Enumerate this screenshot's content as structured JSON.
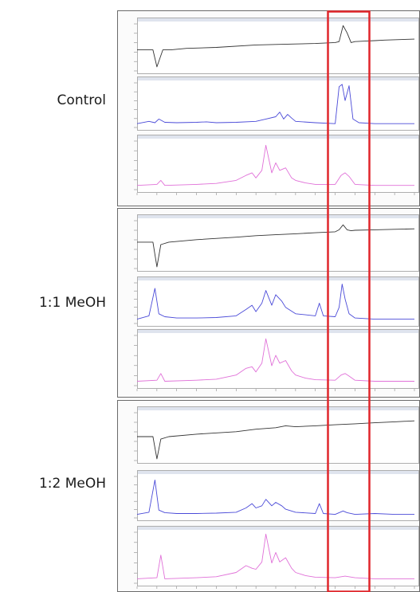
{
  "groups": [
    {
      "label": "Control"
    },
    {
      "label": "1:1 MeOH"
    },
    {
      "label": "1:2 MeOH"
    }
  ],
  "colors": {
    "trace_black": "#333333",
    "trace_blue": "#4a4ad8",
    "trace_magenta": "#e070d8",
    "highlight": "#e0262b"
  },
  "chart_data": [
    {
      "type": "line",
      "group": "Control",
      "panel": 1,
      "color": "black",
      "x": [
        0,
        0.8,
        1.0,
        1.3,
        1.7,
        2.5,
        4,
        6,
        7,
        8,
        9,
        10,
        10.2,
        10.4,
        10.6,
        10.8,
        11,
        11.5,
        12,
        12.5,
        14
      ],
      "y": [
        0.45,
        0.45,
        0.1,
        0.45,
        0.45,
        0.48,
        0.5,
        0.55,
        0.56,
        0.57,
        0.58,
        0.6,
        0.62,
        0.95,
        0.8,
        0.6,
        0.62,
        0.63,
        0.64,
        0.65,
        0.67
      ]
    },
    {
      "type": "line",
      "group": "Control",
      "panel": 2,
      "color": "blue",
      "x": [
        0,
        0.6,
        0.9,
        1.1,
        1.4,
        2,
        3,
        3.5,
        4,
        5,
        6,
        6.5,
        7,
        7.2,
        7.4,
        7.6,
        7.8,
        8,
        9,
        10,
        10.2,
        10.35,
        10.5,
        10.7,
        10.9,
        11.2,
        12,
        14
      ],
      "y": [
        0.1,
        0.15,
        0.12,
        0.2,
        0.13,
        0.12,
        0.13,
        0.14,
        0.12,
        0.13,
        0.15,
        0.2,
        0.25,
        0.35,
        0.2,
        0.3,
        0.22,
        0.15,
        0.12,
        0.1,
        0.9,
        0.95,
        0.6,
        0.92,
        0.2,
        0.12,
        0.1,
        0.1
      ]
    },
    {
      "type": "line",
      "group": "Control",
      "panel": 3,
      "color": "magenta",
      "x": [
        0,
        1.0,
        1.2,
        1.4,
        3,
        4,
        5,
        5.5,
        5.8,
        6,
        6.3,
        6.5,
        6.8,
        7,
        7.2,
        7.5,
        7.8,
        8,
        8.5,
        9,
        10,
        10.3,
        10.5,
        10.7,
        11,
        12,
        13,
        14
      ],
      "y": [
        0.1,
        0.12,
        0.2,
        0.1,
        0.12,
        0.14,
        0.2,
        0.3,
        0.35,
        0.25,
        0.4,
        0.9,
        0.35,
        0.55,
        0.4,
        0.45,
        0.25,
        0.2,
        0.15,
        0.12,
        0.12,
        0.3,
        0.35,
        0.28,
        0.12,
        0.1,
        0.1,
        0.1
      ]
    },
    {
      "type": "line",
      "group": "1:1 MeOH",
      "panel": 1,
      "color": "black",
      "x": [
        0,
        0.8,
        1.0,
        1.2,
        1.6,
        3,
        5,
        6,
        7,
        8,
        9,
        10,
        10.2,
        10.4,
        10.6,
        10.8,
        11,
        12,
        14
      ],
      "y": [
        0.55,
        0.55,
        0.05,
        0.5,
        0.55,
        0.6,
        0.65,
        0.68,
        0.7,
        0.72,
        0.74,
        0.76,
        0.8,
        0.9,
        0.8,
        0.78,
        0.79,
        0.8,
        0.82
      ]
    },
    {
      "type": "line",
      "group": "1:1 MeOH",
      "panel": 2,
      "color": "blue",
      "x": [
        0,
        0.6,
        0.9,
        1.1,
        1.4,
        2,
        3,
        4,
        5,
        5.5,
        5.8,
        6,
        6.3,
        6.5,
        6.8,
        7,
        7.3,
        7.5,
        8,
        9,
        9.2,
        9.4,
        10,
        10.2,
        10.35,
        10.5,
        10.7,
        11,
        12,
        13,
        14
      ],
      "y": [
        0.12,
        0.2,
        0.85,
        0.25,
        0.18,
        0.15,
        0.15,
        0.16,
        0.2,
        0.35,
        0.45,
        0.3,
        0.5,
        0.8,
        0.45,
        0.7,
        0.55,
        0.4,
        0.25,
        0.2,
        0.5,
        0.2,
        0.18,
        0.4,
        0.95,
        0.6,
        0.25,
        0.15,
        0.12,
        0.12,
        0.12
      ]
    },
    {
      "type": "line",
      "group": "1:1 MeOH",
      "panel": 3,
      "color": "magenta",
      "x": [
        0,
        1.0,
        1.2,
        1.4,
        3,
        4,
        5,
        5.5,
        5.8,
        6,
        6.3,
        6.5,
        6.8,
        7,
        7.2,
        7.5,
        7.8,
        8,
        8.5,
        9,
        10,
        10.3,
        10.5,
        10.7,
        11,
        12,
        13,
        14
      ],
      "y": [
        0.1,
        0.12,
        0.25,
        0.1,
        0.12,
        0.14,
        0.22,
        0.35,
        0.38,
        0.28,
        0.45,
        0.92,
        0.4,
        0.6,
        0.45,
        0.5,
        0.3,
        0.22,
        0.16,
        0.13,
        0.12,
        0.22,
        0.25,
        0.2,
        0.12,
        0.1,
        0.1,
        0.1
      ]
    },
    {
      "type": "line",
      "group": "1:2 MeOH",
      "panel": 1,
      "color": "black",
      "x": [
        0,
        0.8,
        1.0,
        1.2,
        1.6,
        3,
        5,
        6,
        7,
        7.5,
        8,
        9,
        10,
        11,
        12,
        13,
        14
      ],
      "y": [
        0.5,
        0.5,
        0.05,
        0.45,
        0.5,
        0.55,
        0.6,
        0.65,
        0.68,
        0.72,
        0.7,
        0.72,
        0.74,
        0.76,
        0.78,
        0.8,
        0.82
      ]
    },
    {
      "type": "line",
      "group": "1:2 MeOH",
      "panel": 2,
      "color": "blue",
      "x": [
        0,
        0.6,
        0.9,
        1.1,
        1.4,
        2,
        3,
        4,
        5,
        5.5,
        5.8,
        6,
        6.3,
        6.5,
        6.8,
        7,
        7.3,
        7.5,
        8,
        9,
        9.2,
        9.4,
        10,
        10.4,
        10.6,
        11,
        12,
        13,
        14
      ],
      "y": [
        0.1,
        0.15,
        0.9,
        0.2,
        0.14,
        0.12,
        0.12,
        0.13,
        0.15,
        0.25,
        0.35,
        0.25,
        0.3,
        0.45,
        0.3,
        0.38,
        0.3,
        0.22,
        0.15,
        0.12,
        0.35,
        0.12,
        0.1,
        0.18,
        0.14,
        0.1,
        0.12,
        0.1,
        0.1
      ]
    },
    {
      "type": "line",
      "group": "1:2 MeOH",
      "panel": 3,
      "color": "magenta",
      "x": [
        0,
        1.0,
        1.2,
        1.4,
        3,
        4,
        5,
        5.5,
        5.8,
        6,
        6.3,
        6.5,
        6.8,
        7,
        7.2,
        7.5,
        7.8,
        8,
        8.5,
        9,
        10,
        10.5,
        11,
        12,
        13,
        14
      ],
      "y": [
        0.1,
        0.12,
        0.55,
        0.1,
        0.12,
        0.14,
        0.22,
        0.35,
        0.3,
        0.28,
        0.42,
        0.95,
        0.4,
        0.6,
        0.42,
        0.5,
        0.3,
        0.22,
        0.16,
        0.13,
        0.12,
        0.15,
        0.12,
        0.1,
        0.1,
        0.1
      ]
    }
  ]
}
